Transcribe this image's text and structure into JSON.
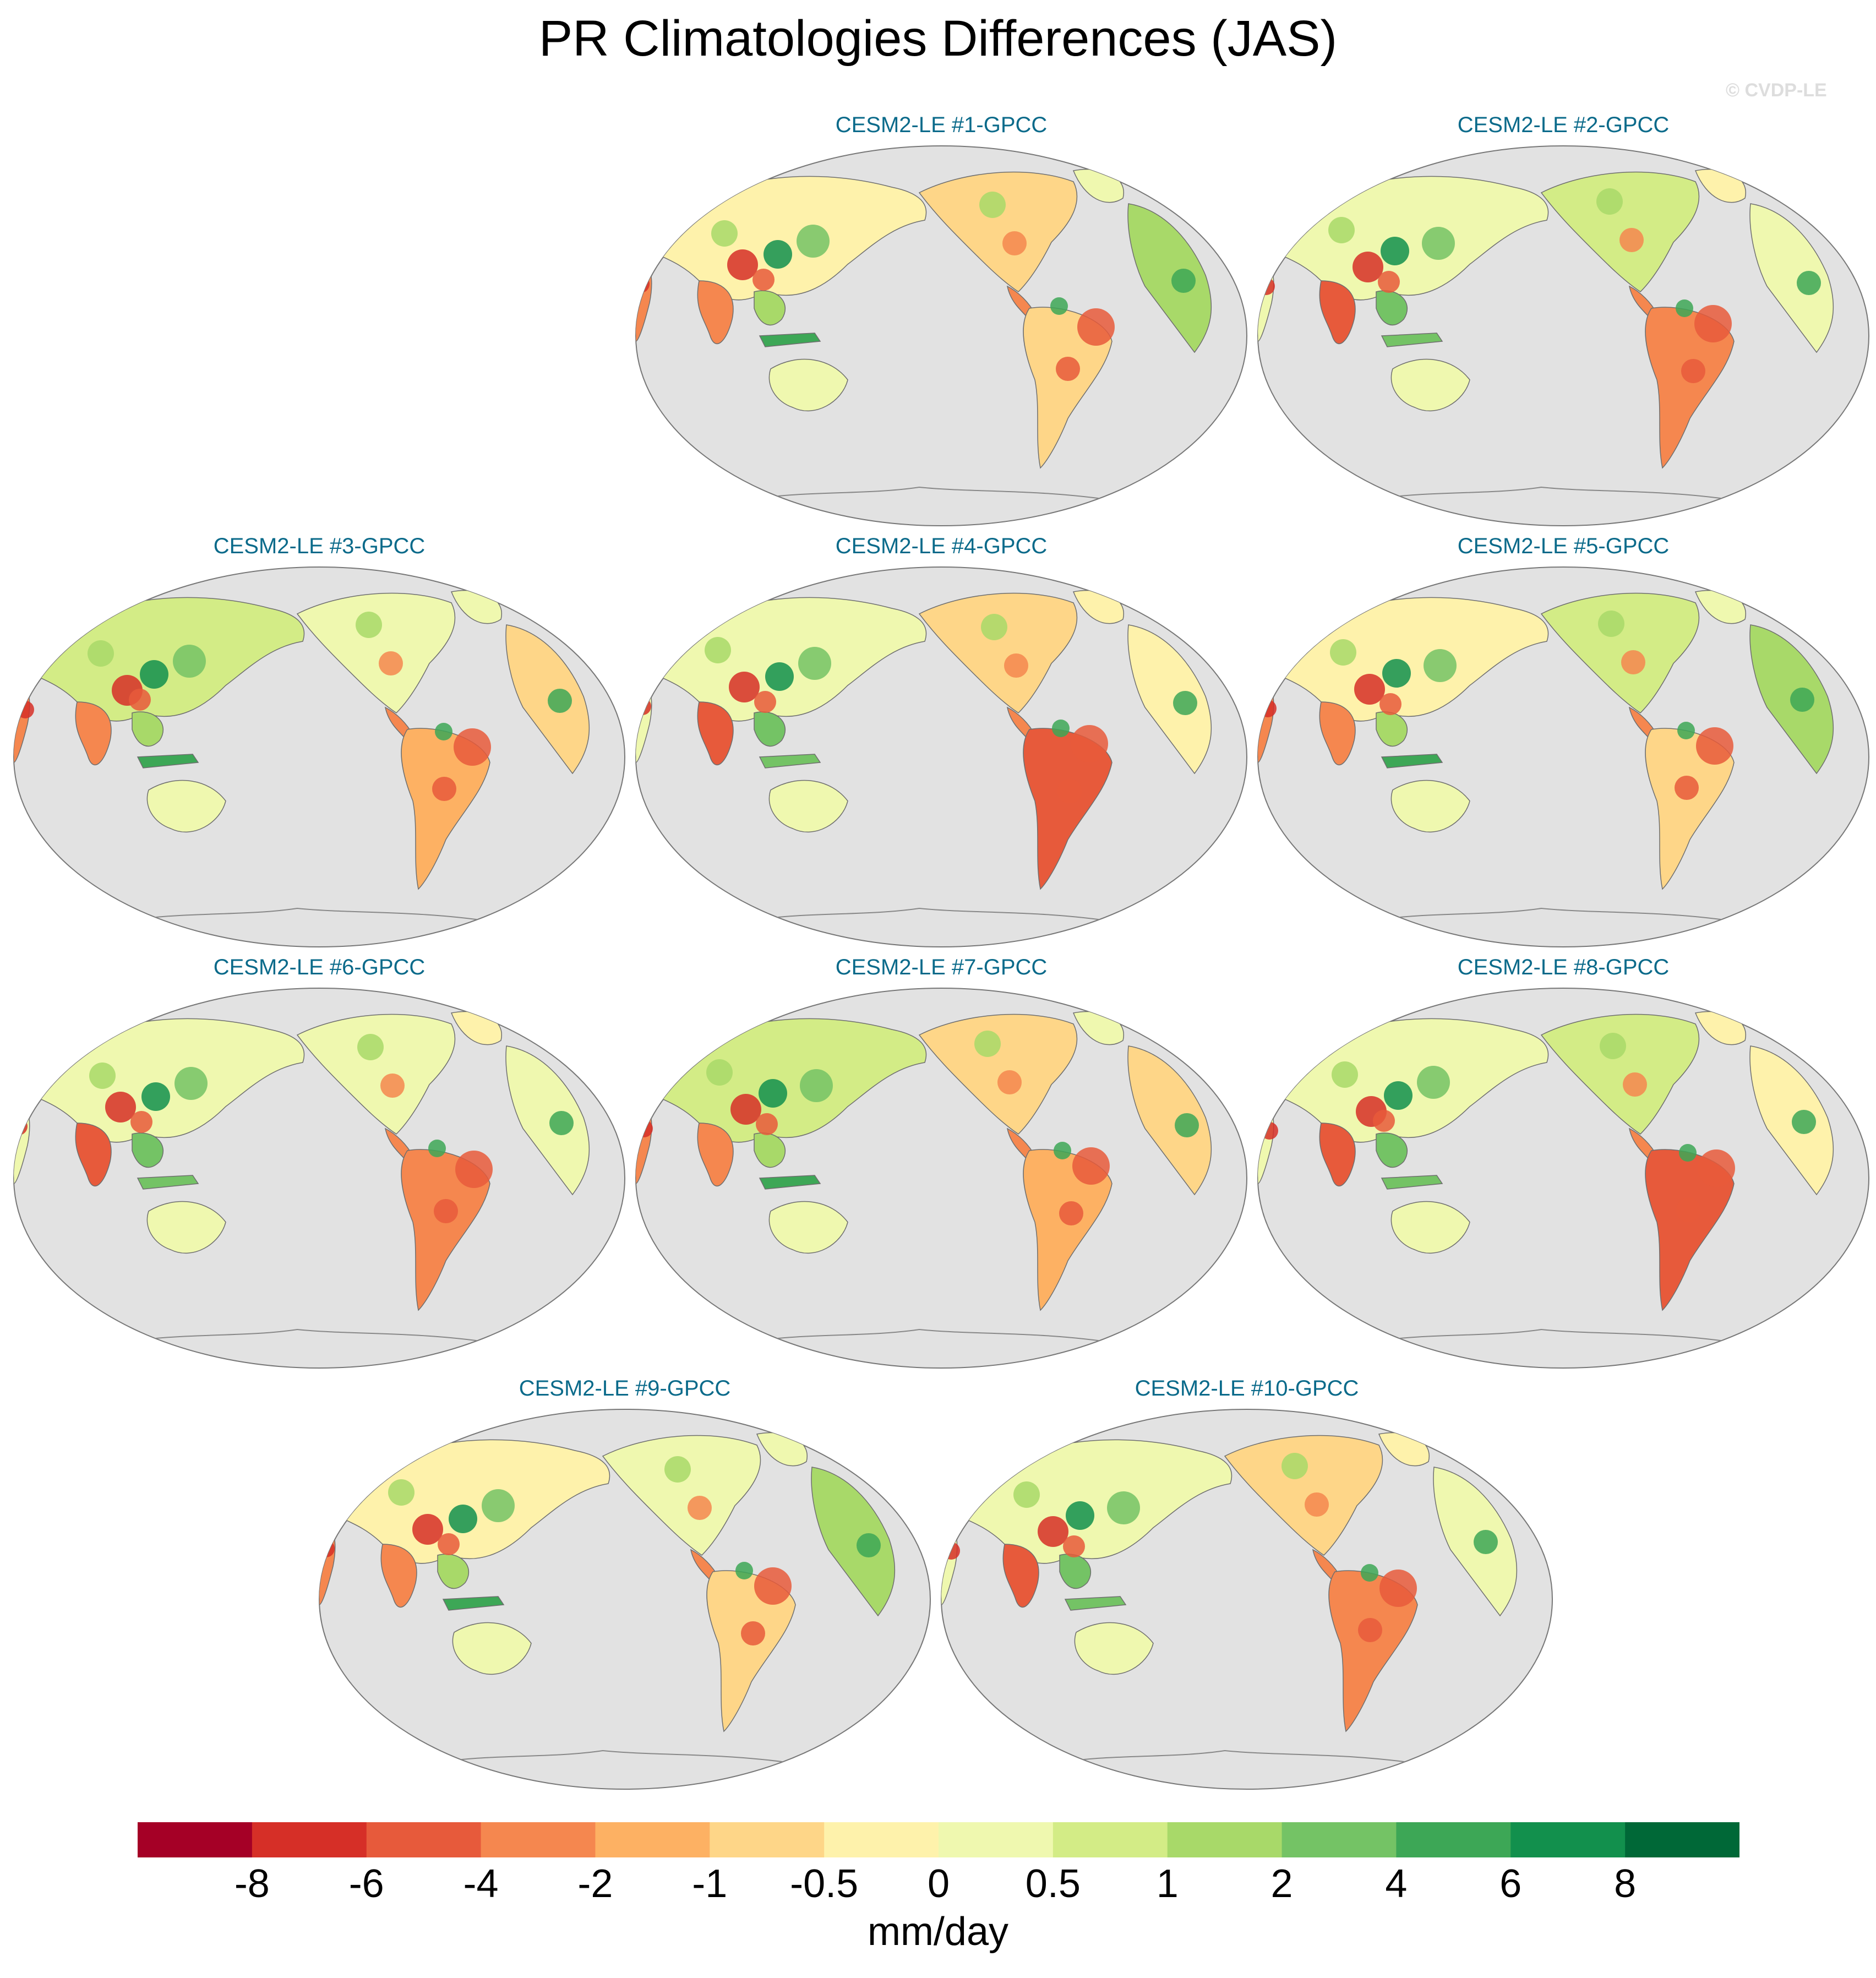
{
  "title": "PR Climatologies Differences (JAS)",
  "watermark": "© CVDP-LE",
  "panels": [
    {
      "label": "CESM2-LE #1-GPCC"
    },
    {
      "label": "CESM2-LE #2-GPCC"
    },
    {
      "label": "CESM2-LE #3-GPCC"
    },
    {
      "label": "CESM2-LE #4-GPCC"
    },
    {
      "label": "CESM2-LE #5-GPCC"
    },
    {
      "label": "CESM2-LE #6-GPCC"
    },
    {
      "label": "CESM2-LE #7-GPCC"
    },
    {
      "label": "CESM2-LE #8-GPCC"
    },
    {
      "label": "CESM2-LE #9-GPCC"
    },
    {
      "label": "CESM2-LE #10-GPCC"
    }
  ],
  "colorbar": {
    "unit": "mm/day",
    "tick_labels": [
      "-8",
      "-6",
      "-4",
      "-2",
      "-1",
      "-0.5",
      "0",
      "0.5",
      "1",
      "2",
      "4",
      "6",
      "8"
    ],
    "colors": [
      "#a50026",
      "#d62f27",
      "#e75a3b",
      "#f5874f",
      "#fdb163",
      "#fed688",
      "#fef2ab",
      "#eff8af",
      "#d3ec86",
      "#a8d969",
      "#74c365",
      "#3da756",
      "#12904d",
      "#006837"
    ]
  },
  "map_colors": {
    "ocean": "#e2e2e2",
    "coast": "#6e6e6e"
  }
}
